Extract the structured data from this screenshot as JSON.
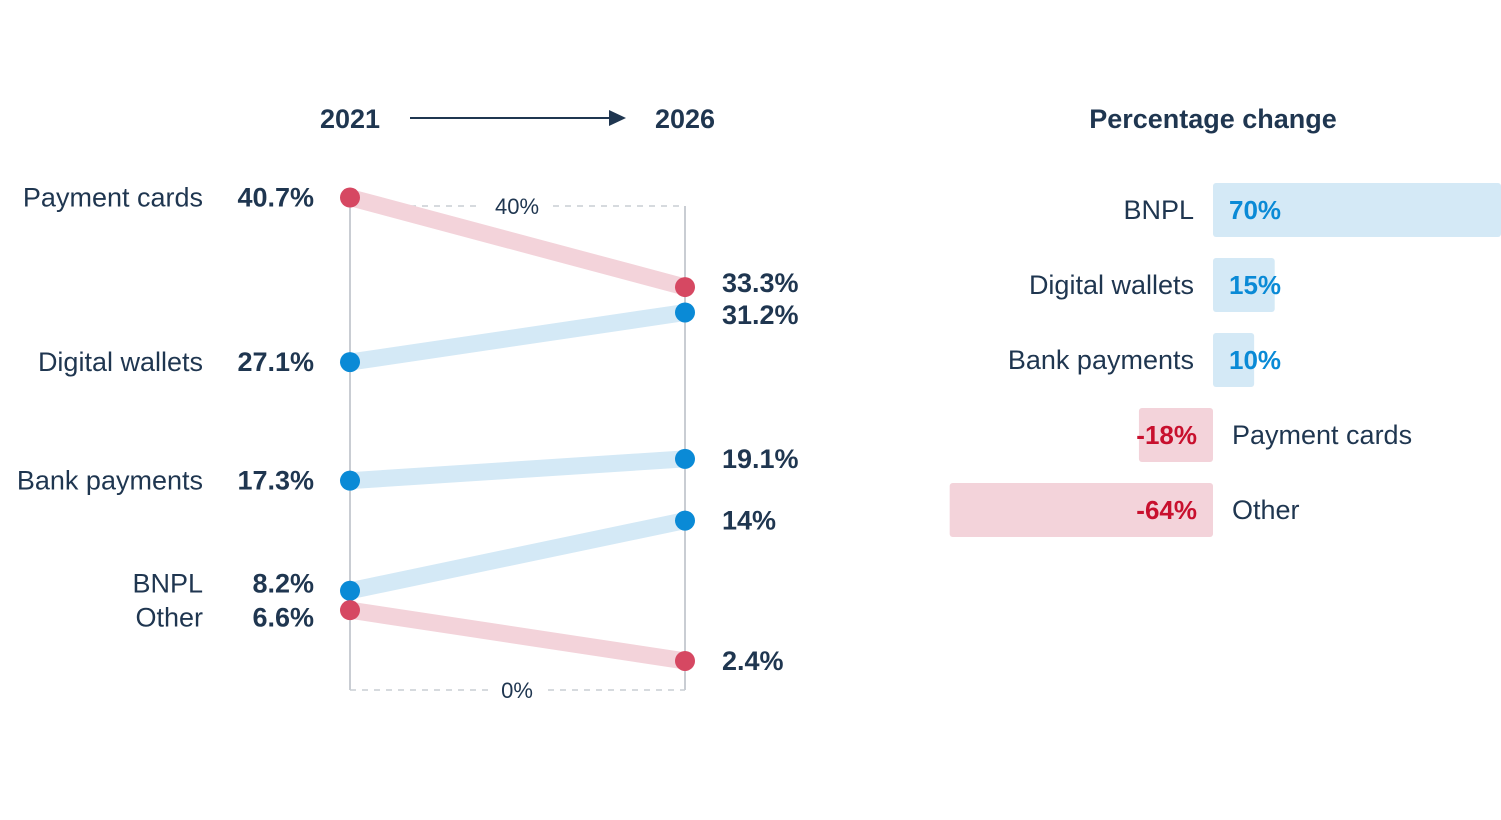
{
  "colors": {
    "text": "#1f3650",
    "increase": "#0a8ad6",
    "increase_light": "#d4e9f6",
    "decrease": "#d64862",
    "decrease_light": "#f3d3da",
    "decrease_text": "#c8102e",
    "axis": "#c9cdd3"
  },
  "chart_data": [
    {
      "type": "line",
      "subtype": "slope",
      "start_label": "2021",
      "end_label": "2026",
      "axis_ticks": [
        "40%",
        "0%"
      ],
      "ylim": [
        0,
        40
      ],
      "series": [
        {
          "name": "Payment cards",
          "start": 40.7,
          "end": 33.3,
          "start_label": "40.7%",
          "end_label": "33.3%",
          "trend": "down"
        },
        {
          "name": "Digital wallets",
          "start": 27.1,
          "end": 31.2,
          "start_label": "27.1%",
          "end_label": "31.2%",
          "trend": "up"
        },
        {
          "name": "Bank payments",
          "start": 17.3,
          "end": 19.1,
          "start_label": "17.3%",
          "end_label": "19.1%",
          "trend": "up"
        },
        {
          "name": "BNPL",
          "start": 8.2,
          "end": 14,
          "start_label": "8.2%",
          "end_label": "14%",
          "trend": "up"
        },
        {
          "name": "Other",
          "start": 6.6,
          "end": 2.4,
          "start_label": "6.6%",
          "end_label": "2.4%",
          "trend": "down"
        }
      ]
    },
    {
      "type": "bar",
      "orientation": "horizontal",
      "title": "Percentage change",
      "categories": [
        "BNPL",
        "Digital wallets",
        "Bank payments",
        "Payment cards",
        "Other"
      ],
      "values": [
        70,
        15,
        10,
        -18,
        -64
      ],
      "value_labels": [
        "70%",
        "15%",
        "10%",
        "-18%",
        "-64%"
      ]
    }
  ]
}
